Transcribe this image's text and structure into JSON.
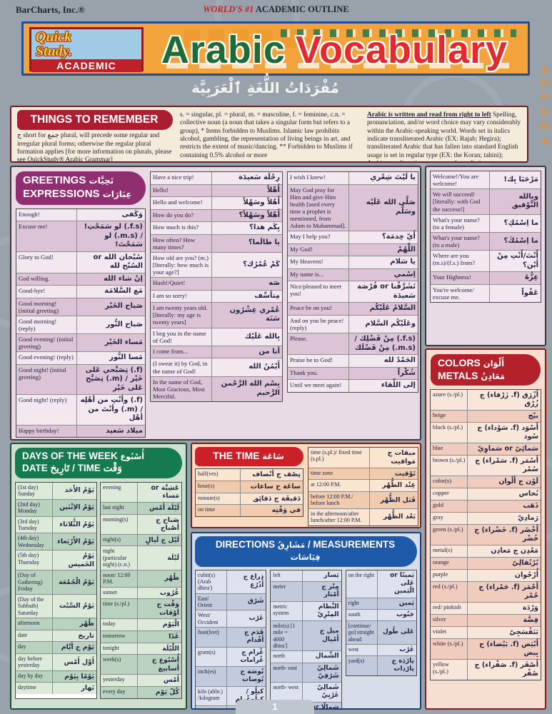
{
  "meta": {
    "colors": {
      "page_bg": "#99a1ab",
      "banner_bg": "#f3a33c",
      "banner_border": "#1c4f9c",
      "title_green": "#1d6b36",
      "title_red": "#e22a30",
      "pill_things": "#ab1e31",
      "pill_greetings": "#8f2f70",
      "pill_colors": "#b5212b",
      "pill_days": "#157a50",
      "pill_time": "#cb2027",
      "pill_directions": "#1e5aa8",
      "open_tab": "#e0913f"
    }
  },
  "page": {
    "publisher": "BarCharts, Inc.®",
    "tagline_italic": "WORLD'S #1",
    "tagline_rest": " ACADEMIC OUTLINE",
    "logo_line1": "Quick",
    "logo_line2": "Study.",
    "logo_badge": "ACADEMIC",
    "title_green": "Arabic",
    "title_red": "Vocabulary",
    "subtitle_arabic": "مُفْرَدَاتُ اللُّغَةِ ٱلْعَرَبِيَّة",
    "open_tab": "▲OPEN▲",
    "page_number": "1"
  },
  "things": {
    "title": "THINGS TO REMEMBER",
    "col1": "ج short for جمع plural, will precede some regular and irregular plural forms; otherwise the regular plural formation applies [for more information on plurals, please see QuickStudy® Arabic Grammar]",
    "col2": "s. = singular, pl. = plural, m. = masculine, f. = feminine, c.n. = collective noun (a noun that takes a singular form but refers to a group), * Items forbidden to Muslims. Islamic law prohibits alcohol, gambling, the representation of living beings in art, and restricts the extent of music/dancing. ** Forbidden to Muslims if containing 0.5% alcohol or more",
    "col3_bold": "Arabic is written and read from right to left",
    "col3": "Spelling, pronunciation, and/or word choice may vary considerably within the Arabic-speaking world. Words set in italics indicate transliterated Arabic (EX: Rajab; Hegira); transliterated Arabic that has fallen into standard English usage is set in regular type (EX: the Koran; tahini); Arabic transliterations may vary from dictionary to dictionary, but the most common versions are used here."
  },
  "greetings": {
    "title_line1_en": "GREETINGS",
    "title_line1_ar": "تَحِيَّات",
    "title_line2_en": "EXPRESSIONS",
    "title_line2_ar": "عِبَارَات",
    "col1": [
      {
        "en": "Enough!",
        "ar": "وَكَفى"
      },
      {
        "en": "Excuse me!",
        "ar": "(f.s.) لو سَمَحْتِ! / (m.s.) لو سَمَحْتَ!"
      },
      {
        "en": "Glory to God!",
        "ar": "سُبْحان الله or السُبْح لله"
      },
      {
        "en": "God willing.",
        "ar": "إنْ شاء الله"
      },
      {
        "en": "Good-bye!",
        "ar": "مَع السَّلامَة"
      },
      {
        "en": "Good morning! (initial greeting)",
        "ar": "صَباح الخَيْر"
      },
      {
        "en": "Good morning! (reply)",
        "ar": "صَباح النُّور"
      },
      {
        "en": "Good evening! (initial greeting)",
        "ar": "مَساء الخَيْر"
      },
      {
        "en": "Good evening! (reply)",
        "ar": "مَسا النُّور"
      },
      {
        "en": "Good night! (initial greeting)",
        "ar": "(f.) تِصَبَّحي عَلى خَيْر / (m.) تِصَبَّح عَلى خَيْر"
      },
      {
        "en": "Good night! (reply)",
        "ar": "(f.) وأنْتِ من أهْلِه / (m.) وأنْتَ من أهْل"
      },
      {
        "en": "Happy birthday!",
        "ar": "ميلاد سَعيد"
      }
    ],
    "col2": [
      {
        "en": "Have a nice trip!",
        "ar": "رِحْلَة سَعيدَة"
      },
      {
        "en": "Hello!",
        "ar": "أَهْلاً"
      },
      {
        "en": "Hello and welcome!",
        "ar": "أَهْلاً وسَهْلاً"
      },
      {
        "en": "How do you do?",
        "ar": "أَهْلاً وسَهْلاً؟"
      },
      {
        "en": "How much is this?",
        "ar": "بِكَم هذا؟"
      },
      {
        "en": "How often? How many times?",
        "ar": "يا طالَما؟"
      },
      {
        "en": "How old are you? (m.) [literally: how much is your age?]",
        "ar": "كَمْ عُمْرُك؟"
      },
      {
        "en": "Hush!/Quiet!",
        "ar": "صَه"
      },
      {
        "en": "I am so sorry!",
        "ar": "مِتأسِّف"
      },
      {
        "en": "I am twenty years old. [literally: my age is twenty years]",
        "ar": "عُمْري عِشْرُون سَنَة"
      },
      {
        "en": "I beg you in the name of God!",
        "ar": "بِالله عَلَيْك"
      },
      {
        "en": "I come from...",
        "ar": "أنا من"
      },
      {
        "en": "(I swear it) by God, in the name of God!",
        "ar": "أَيْمُنُ الله"
      },
      {
        "en": "In the name of God, Most Gracious, Most Merciful.",
        "ar": "بِسْم الله الرَّحْمن الرَّحيم"
      }
    ],
    "col3": [
      {
        "en": "I wish I knew!",
        "ar": "يا لَيْتَ شِعْري"
      },
      {
        "en": "May God pray for Him and give Him health [used every time a prophet is mentioned, from Adam to Muhammad].",
        "ar": "صَلَّى الله عَلَيْه وسَلَّم"
      },
      {
        "en": "May I help you?",
        "ar": "أَيّ خِدمَة؟"
      },
      {
        "en": "My God!",
        "ar": "اللَّهُمْ"
      },
      {
        "en": "My Heavens!",
        "ar": "يا سَلام"
      },
      {
        "en": "My name is...",
        "ar": "اِسْمي"
      },
      {
        "en": "Nice/pleased to meet you!",
        "ar": "تَشَرَّفْنا or فُرْصَة سَعيدَة"
      },
      {
        "en": "Peace be on you!",
        "ar": "السَّلامُ عَلَيْكُم"
      },
      {
        "en": "And on you be peace! (reply)",
        "ar": "وعَلَيْكُم السَّلام"
      },
      {
        "en": "Please.",
        "ar": "(f.s.) مِنْ فَضْلِك / (m.s.) مِنْ فَضْلَك"
      },
      {
        "en": "Praise be to God!",
        "ar": "الحَمْدُ لله"
      },
      {
        "en": "Thank you.",
        "ar": "شُكْراً"
      },
      {
        "en": "Until we meet again!",
        "ar": "إلى اللِّقاء"
      }
    ],
    "col4": [
      {
        "en": "Welcome!/You are welcome!",
        "ar": "مَرْحَبَا بِك!"
      },
      {
        "en": "We will succeed! [literally: with God the success!]",
        "ar": "وبِالله التَّوْفيق"
      },
      {
        "en": "What's your name? (to a female)",
        "ar": "ما اِسْمُكِ؟"
      },
      {
        "en": "What's your name? (to a male)",
        "ar": "ما اِسْمُكَ؟"
      },
      {
        "en": "Where are you (m.s)/(f.s.) from?",
        "ar": "أَنْتَ/أَنْتِ مِنْ أَيْن؟"
      },
      {
        "en": "Your Highness!",
        "ar": "عِزُّهُ"
      },
      {
        "en": "You're welcome/ excuse me.",
        "ar": "عَفْواً"
      }
    ]
  },
  "colors_metals": {
    "title_line1_en": "COLORS",
    "title_line1_ar": "أَلْوَان",
    "title_line2_en": "METALS",
    "title_line2_ar": "مَعَادِنُ",
    "rows": [
      {
        "en": "azure (s./pl.)",
        "ar": "أَزْرَق (f. زَرْقاء) ج زُرْق"
      },
      {
        "en": "beige",
        "ar": "بيْج"
      },
      {
        "en": "black (s./pl.)",
        "ar": "أَسْوَد (f. سَوْداء) ج سُود"
      },
      {
        "en": "blue",
        "ar": "سَمائِيّ or سَماوِيّ"
      },
      {
        "en": "brown (s./pl.)",
        "ar": "أَسْمَر (f. سَمْراء) ج سُمْر"
      },
      {
        "en": "color(s)",
        "ar": "لَوْن ج أَلْوان"
      },
      {
        "en": "copper",
        "ar": "نُحاس"
      },
      {
        "en": "gold",
        "ar": "ذَهَب"
      },
      {
        "en": "gray",
        "ar": "رَمادِيّ"
      },
      {
        "en": "green (s./pl.)",
        "ar": "أَخْضَر (f. خَضْراء) ج خُضْر"
      },
      {
        "en": "metal(s)",
        "ar": "مَعْدِن ج مَعادِن"
      },
      {
        "en": "orange",
        "ar": "بُرْتُقالِيّ"
      },
      {
        "en": "purple",
        "ar": "أُرْجُوان"
      },
      {
        "en": "red (s./pl.)",
        "ar": "أَحْمَر (f. حَمْراء) ج حُمْر"
      },
      {
        "en": "red/ pinkish",
        "ar": "وَرْدَة"
      },
      {
        "en": "silver",
        "ar": "فِضَّة"
      },
      {
        "en": "violet",
        "ar": "بَنَفْسَجِيّ"
      },
      {
        "en": "white (s./pl.)",
        "ar": "أَبْيَض (f. بَيْضاء) ج بِيض"
      },
      {
        "en": "yellow (s./pl.)",
        "ar": "أَصْفَر (f. صَفْراء) ج صُفْر"
      }
    ]
  },
  "days": {
    "title_line1_en": "DAYS OF THE WEEK",
    "title_line1_ar": "أُسْبُوع",
    "title_line2": "DATE تَارِيخ / TIME وَقْت",
    "col1": [
      {
        "en": "(1st day) Sunday",
        "ar": "يَوْمُ الأَحَد"
      },
      {
        "en": "(2nd day) Monday",
        "ar": "يَوْمُ الاِثْنَين"
      },
      {
        "en": "(3rd day) Tuesday",
        "ar": "يَوْمُ الثُّلاثاء"
      },
      {
        "en": "(4th day) Wednesday",
        "ar": "يَوْمُ الأَرْبَعاء"
      },
      {
        "en": "(5th day) Thursday",
        "ar": "يَوْمُ الخَميس"
      },
      {
        "en": "(Day of Gathering) Friday",
        "ar": "يَوْمُ الْجُمْعَة"
      },
      {
        "en": "(Day of the Sabbath) Saturday",
        "ar": "يَوْمُ السَّبْت"
      },
      {
        "en": "afternoon",
        "ar": "ظُهْر"
      },
      {
        "en": "date",
        "ar": "تاريخ"
      },
      {
        "en": "day",
        "ar": "يَوْم ج أَيَّام"
      },
      {
        "en": "day before yesterday",
        "ar": "أَوَّل أَمْس"
      },
      {
        "en": "day by day",
        "ar": "يَوْمًا بِيَوْم"
      },
      {
        "en": "daytime",
        "ar": "نَهار"
      }
    ],
    "col2": [
      {
        "en": "evening",
        "ar": "عَشِيَّة or مَساء"
      },
      {
        "en": "last night",
        "ar": "لَيْلَة أَمْس"
      },
      {
        "en": "morning(s)",
        "ar": "صَباح ج أَصْباح"
      },
      {
        "en": "night(s)",
        "ar": "لَيْل ج لَيالٍ"
      },
      {
        "en": "night (particular night) (c.n.)",
        "ar": "لَيْلَة"
      },
      {
        "en": "noon/ 12:00 P.M.",
        "ar": "ظُهْر"
      },
      {
        "en": "sunset",
        "ar": "غُرُوب"
      },
      {
        "en": "time (s./pl.)",
        "ar": "وَقْت ج أوْقات"
      },
      {
        "en": "today",
        "ar": "الْيَوْم"
      },
      {
        "en": "tomorrow",
        "ar": "غَدًا"
      },
      {
        "en": "tonight",
        "ar": "اللَّيْلَة"
      },
      {
        "en": "week(s)",
        "ar": "أُسْبُوع ج أَسابيع"
      },
      {
        "en": "yesterday",
        "ar": "أَمْس"
      },
      {
        "en": "every day",
        "ar": "كُلّ يَوْم"
      }
    ]
  },
  "time": {
    "title_en": "THE TIME",
    "title_ar": "سَاعَة",
    "left": [
      {
        "en": "half(ves)",
        "ar": "نِصْف ج أنْصاف"
      },
      {
        "en": "hour(s)",
        "ar": "ساعَة ج ساعات"
      },
      {
        "en": "minute(s)",
        "ar": "دَقيقَة ج دَقائِق"
      },
      {
        "en": "on time",
        "ar": "في وَقْتِه"
      }
    ],
    "right": [
      {
        "en": "time (s.pl.)/ fixed time (s.pl.)",
        "ar": "ميقات ج مَواقيت"
      },
      {
        "en": "time zone",
        "ar": "تَوْقيت"
      },
      {
        "en": "at 12:00 P.M.",
        "ar": "عِنْد الظُّهْر"
      },
      {
        "en": "before 12:00 P.M./ before lunch",
        "ar": "قَبَل الظُّهْر"
      },
      {
        "en": "in the afternoon/after lunch/after 12:00 P.M.",
        "ar": "بَعْد الظُّهْر"
      }
    ]
  },
  "directions": {
    "title_en1": "DIRECTIONS",
    "title_ar1": "مَشَارِقُ",
    "title_en2": "MEASUREMENTS",
    "title_ar2": "قِيَاسَات",
    "col1": [
      {
        "en": "cubit(s) (Arab dhira')",
        "ar": "ذِراع ج أَذْرُع"
      },
      {
        "en": "East/ Orient",
        "ar": "شَرْق"
      },
      {
        "en": "West/ Occident",
        "ar": "غَرْب"
      },
      {
        "en": "foot(feet)",
        "ar": "قَدَم ج أَقْدام"
      },
      {
        "en": "gram(s)",
        "ar": "غْرام ج غْرامات"
      },
      {
        "en": "inch(es)",
        "ar": "بُوصَة ج بُوصات"
      },
      {
        "en": "kilo (abbr.) /kilogram",
        "ar": "كيلُو / كيلُوغْرام"
      },
      {
        "en": "kilo- meter(s)",
        "ar": "كيلُومِتْر ج كيلُومِتْرات"
      }
    ],
    "col2": [
      {
        "en": "left",
        "ar": "يَسار"
      },
      {
        "en": "meter",
        "ar": "مِتْر ج أَمْتار"
      },
      {
        "en": "metric system",
        "ar": "النِّظام المِتْرِيّ"
      },
      {
        "en": "mile(s) [1 mile = 4000 dhira']",
        "ar": "ميل ج أَمْيال"
      },
      {
        "en": "north",
        "ar": "الشَّمال"
      },
      {
        "en": "north- east",
        "ar": "شَمالِيّ شَرْقِيّ"
      },
      {
        "en": "north- west",
        "ar": "شَمالِيّ غَرْبِيّ"
      },
      {
        "en": "on the left",
        "ar": "شِمالًا or عَلى الْيَسار"
      }
    ],
    "col3": [
      {
        "en": "on the right",
        "ar": "يَمينًا or عَلى الْيَمين"
      },
      {
        "en": "right",
        "ar": "يَمين"
      },
      {
        "en": "south",
        "ar": "جَنُوب"
      },
      {
        "en": "[continue/ go] straight ahead",
        "ar": "عَلى طُول"
      },
      {
        "en": "west",
        "ar": "غَرْب"
      },
      {
        "en": "yard(s)",
        "ar": "يارْدَة ج يارْدات"
      }
    ]
  }
}
